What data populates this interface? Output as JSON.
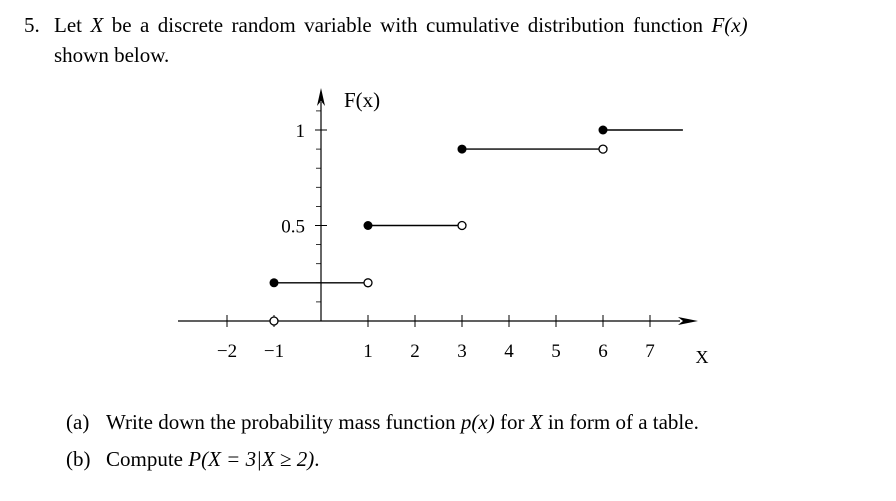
{
  "problem": {
    "number": "5.",
    "intro_a": "Let ",
    "var": "X",
    "intro_b": " be a discrete random variable with cumulative distribution function ",
    "fn": "F",
    "fn_arg": "(x)",
    "intro_line2": "shown below."
  },
  "chart_data": {
    "type": "line",
    "ylabel": "F(x)",
    "xlabel": "X",
    "x_ticks": [
      "-2",
      "-1",
      "1",
      "2",
      "3",
      "4",
      "5",
      "6",
      "7"
    ],
    "y_ticks": [
      "0.5",
      "1"
    ],
    "y_tick_values": [
      0.5,
      1
    ],
    "x_tick_values": [
      -2,
      -1,
      1,
      2,
      3,
      4,
      5,
      6,
      7
    ],
    "steps": [
      {
        "x_start": -1,
        "x_end": 1,
        "y": 0.2
      },
      {
        "x_start": 1,
        "x_end": 3,
        "y": 0.5
      },
      {
        "x_start": 3,
        "x_end": 6,
        "y": 0.9
      },
      {
        "x_start": 6,
        "x_end": 7.7,
        "y": 1
      }
    ],
    "open_points": [
      [
        -1,
        0
      ],
      [
        1,
        0.2
      ],
      [
        3,
        0.5
      ],
      [
        6,
        0.9
      ]
    ],
    "closed_points": [
      [
        -1,
        0.2
      ],
      [
        1,
        0.5
      ],
      [
        3,
        0.9
      ],
      [
        6,
        1
      ]
    ]
  },
  "questions": [
    {
      "label": "(a)",
      "a": "Write down the probability mass function ",
      "b": "p",
      "c": "(x)",
      "d": " for ",
      "e": "X",
      "f": " in form of a table."
    },
    {
      "label": "(b)",
      "a": "Compute ",
      "b": "P",
      "c": "(X = 3|X ≥ 2)",
      "d": "."
    }
  ]
}
